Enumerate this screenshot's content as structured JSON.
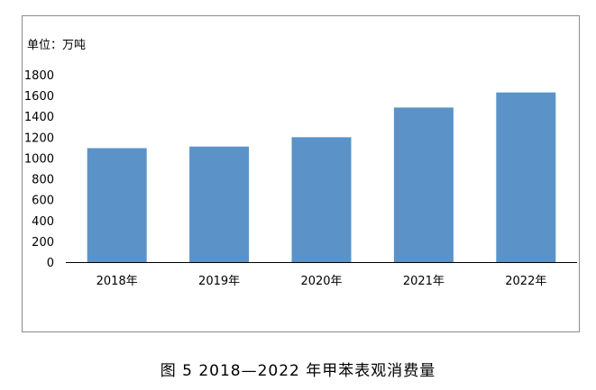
{
  "caption": "图 5  2018—2022 年甲苯表观消费量",
  "chart_data": {
    "type": "bar",
    "unit_label": "单位：万吨",
    "categories": [
      "2018年",
      "2019年",
      "2020年",
      "2021年",
      "2022年"
    ],
    "values": [
      1095,
      1110,
      1200,
      1485,
      1630
    ],
    "ylim": [
      0,
      1800
    ],
    "yticks": [
      "0",
      "200",
      "400",
      "600",
      "800",
      "1000",
      "1200",
      "1400",
      "1600",
      "1800"
    ],
    "bar_color": "#5b93c8",
    "grid": false,
    "legend": "none"
  }
}
